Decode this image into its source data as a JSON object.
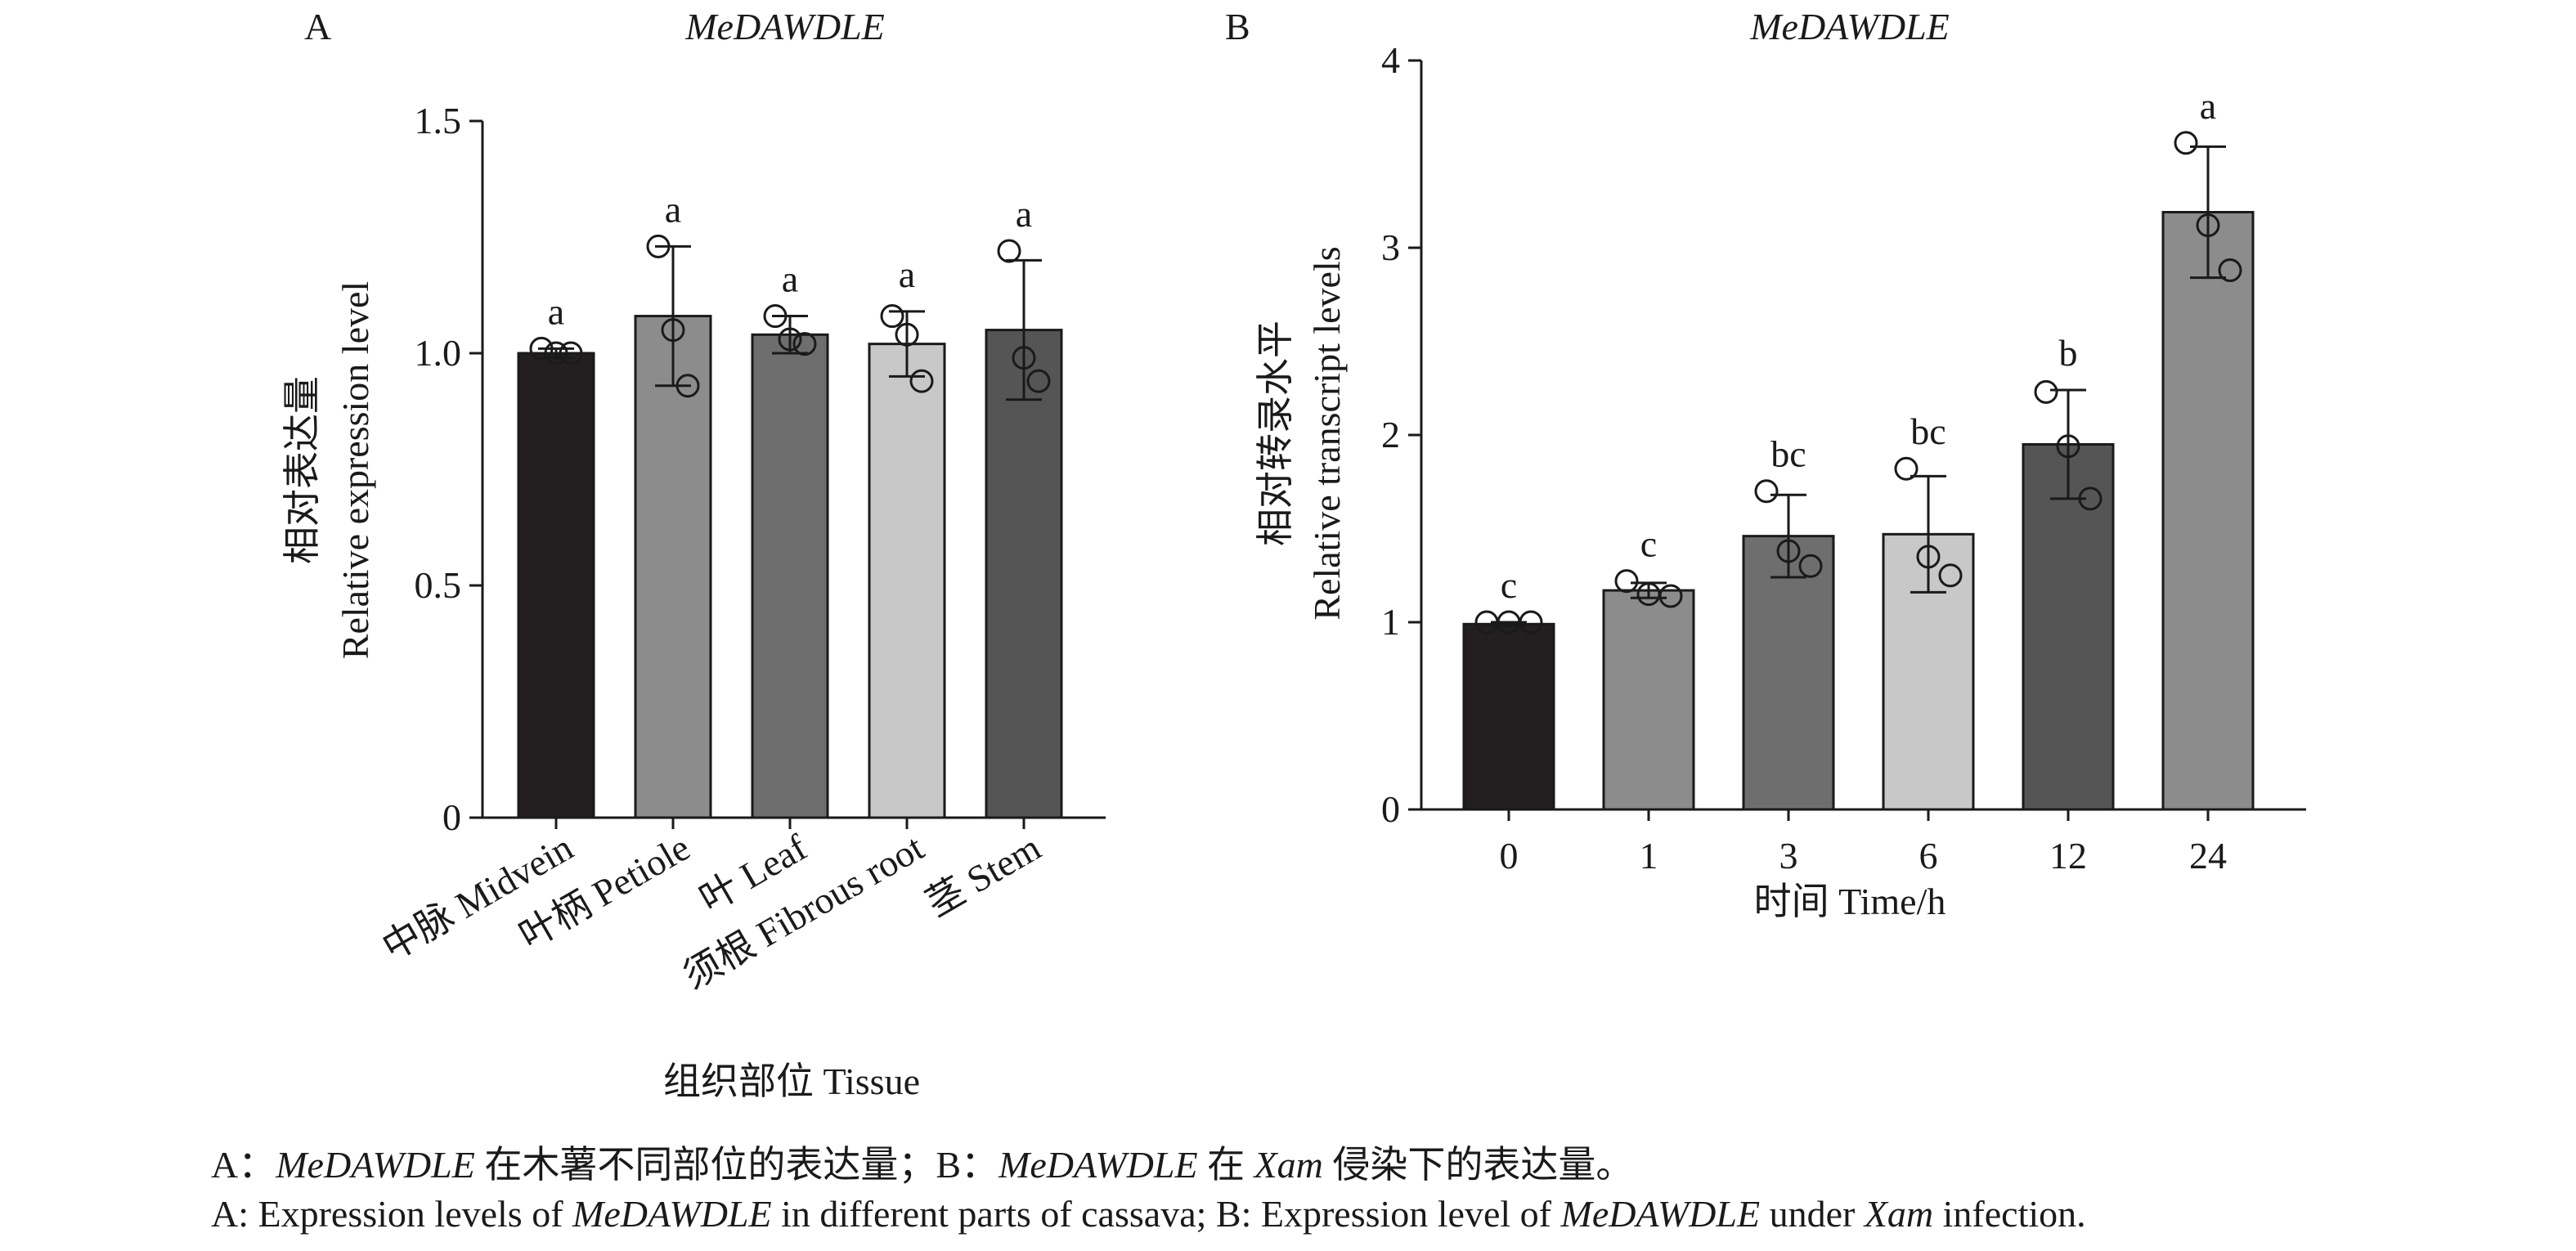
{
  "chart_data": [
    {
      "panel": "A",
      "type": "bar",
      "title": "MeDAWDLE",
      "ylabel": [
        "相对表达量",
        "Relative expression level"
      ],
      "xlabel": "组织部位 Tissue",
      "ylim": [
        0,
        1.5
      ],
      "yticks": [
        "0",
        "0.5",
        "1.0",
        "1.5"
      ],
      "categories": [
        "中脉 Midvein",
        "叶柄 Petiole",
        "叶 Leaf",
        "须根 Fibrous root",
        "茎 Stem"
      ],
      "values": [
        1.0,
        1.08,
        1.04,
        1.02,
        1.05
      ],
      "error": [
        0.01,
        0.15,
        0.04,
        0.07,
        0.15
      ],
      "points": [
        [
          1.01,
          1.0,
          1.0
        ],
        [
          1.23,
          1.05,
          0.93
        ],
        [
          1.08,
          1.03,
          1.02
        ],
        [
          1.08,
          1.04,
          0.94
        ],
        [
          1.22,
          0.99,
          0.94
        ]
      ],
      "letters": [
        "a",
        "a",
        "a",
        "a",
        "a"
      ],
      "colors": [
        "#231f20",
        "#8c8c8c",
        "#6e6e6e",
        "#c8c8c8",
        "#555555"
      ],
      "grid": false,
      "legend": "none"
    },
    {
      "panel": "B",
      "type": "bar",
      "title": "MeDAWDLE",
      "ylabel": [
        "相对转录水平",
        "Relative transcript levels"
      ],
      "xlabel": "时间 Time/h",
      "ylim": [
        0,
        4
      ],
      "yticks": [
        "0",
        "1",
        "2",
        "3",
        "4"
      ],
      "categories": [
        "0",
        "1",
        "3",
        "6",
        "12",
        "24"
      ],
      "values": [
        0.99,
        1.17,
        1.46,
        1.47,
        1.95,
        3.19
      ],
      "error": [
        0.01,
        0.04,
        0.22,
        0.31,
        0.29,
        0.35
      ],
      "points": [
        [
          1.0,
          1.0,
          1.0
        ],
        [
          1.22,
          1.15,
          1.14
        ],
        [
          1.7,
          1.38,
          1.3
        ],
        [
          1.82,
          1.35,
          1.25
        ],
        [
          2.23,
          1.94,
          1.66
        ],
        [
          3.56,
          3.12,
          2.88
        ]
      ],
      "letters": [
        "c",
        "c",
        "bc",
        "bc",
        "b",
        "a"
      ],
      "colors": [
        "#231f20",
        "#8c8c8c",
        "#6e6e6e",
        "#c8c8c8",
        "#555555",
        "#8c8c8c"
      ],
      "grid": false,
      "legend": "none"
    }
  ],
  "caption": {
    "line1": [
      {
        "text": "A：",
        "italic": false
      },
      {
        "text": "MeDAWDLE",
        "italic": true
      },
      {
        "text": " 在木薯不同部位的表达量；B：",
        "italic": false
      },
      {
        "text": "MeDAWDLE",
        "italic": true
      },
      {
        "text": " 在 ",
        "italic": false
      },
      {
        "text": "Xam",
        "italic": true
      },
      {
        "text": " 侵染下的表达量。",
        "italic": false
      }
    ],
    "line2": [
      {
        "text": "A: Expression levels of ",
        "italic": false
      },
      {
        "text": "MeDAWDLE",
        "italic": true
      },
      {
        "text": " in different parts of cassava; B: Expression level of ",
        "italic": false
      },
      {
        "text": "MeDAWDLE",
        "italic": true
      },
      {
        "text": " under ",
        "italic": false
      },
      {
        "text": "Xam",
        "italic": true
      },
      {
        "text": " infection.",
        "italic": false
      }
    ]
  }
}
